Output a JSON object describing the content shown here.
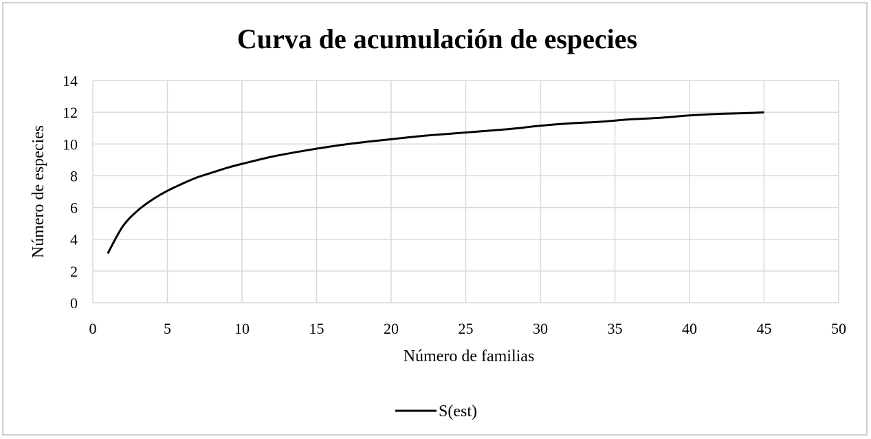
{
  "chart_data": {
    "type": "line",
    "title": "Curva de acumulación de especies",
    "xlabel": "Número de familias",
    "ylabel": "Número de especies",
    "xlim": [
      0,
      50
    ],
    "ylim": [
      0,
      14
    ],
    "xticks": [
      0,
      5,
      10,
      15,
      20,
      25,
      30,
      35,
      40,
      45,
      50
    ],
    "yticks": [
      0,
      2,
      4,
      6,
      8,
      10,
      12,
      14
    ],
    "grid": true,
    "legend_position": "bottom",
    "series": [
      {
        "name": "S(est)",
        "color": "#000000",
        "x": [
          1,
          2,
          3,
          4,
          5,
          6,
          7,
          8,
          9,
          10,
          12,
          14,
          16,
          18,
          20,
          22,
          24,
          26,
          28,
          30,
          32,
          34,
          36,
          38,
          40,
          42,
          44,
          45
        ],
        "y": [
          3.1,
          4.8,
          5.8,
          6.5,
          7.05,
          7.5,
          7.9,
          8.2,
          8.5,
          8.75,
          9.2,
          9.55,
          9.85,
          10.1,
          10.3,
          10.5,
          10.65,
          10.8,
          10.95,
          11.15,
          11.3,
          11.4,
          11.55,
          11.65,
          11.8,
          11.9,
          11.95,
          12.0
        ]
      }
    ]
  }
}
